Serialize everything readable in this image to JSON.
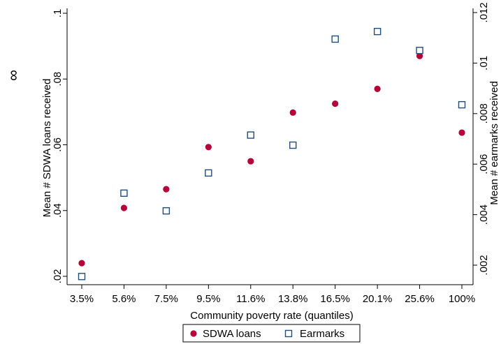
{
  "corner_glyph": "∞",
  "chart_data": {
    "type": "scatter",
    "title": "",
    "xlabel": "Community poverty rate (quantiles)",
    "ylabel_left": "Mean # SDWA loans received",
    "ylabel_right": "Mean # earmarks received",
    "categories": [
      "3.5%",
      "5.6%",
      "7.5%",
      "9.5%",
      "11.6%",
      "13.8%",
      "16.5%",
      "20.1%",
      "25.6%",
      "100%"
    ],
    "y_left": {
      "ticks": [
        0.02,
        0.04,
        0.06,
        0.08,
        0.1
      ],
      "tick_labels": [
        ".02",
        ".04",
        ".06",
        ".08",
        ".1"
      ],
      "range": [
        0.02,
        0.1
      ]
    },
    "y_right": {
      "ticks": [
        0.002,
        0.004,
        0.006,
        0.008,
        0.01,
        0.012
      ],
      "tick_labels": [
        ".002",
        ".004",
        ".006",
        ".008",
        ".01",
        ".012"
      ],
      "range": [
        0.0015,
        0.012
      ]
    },
    "series": [
      {
        "name": "SDWA loans",
        "axis": "left",
        "marker": "circle",
        "color": "#b5003a",
        "values": [
          0.024,
          0.0408,
          0.0465,
          0.0593,
          0.055,
          0.0698,
          0.0725,
          0.077,
          0.087,
          0.0637
        ]
      },
      {
        "name": "Earmarks",
        "axis": "right",
        "marker": "hollow-square",
        "color": "#1f4e79",
        "values": [
          0.00155,
          0.00485,
          0.00415,
          0.00565,
          0.00715,
          0.00675,
          0.01095,
          0.01125,
          0.0105,
          0.00835
        ]
      }
    ],
    "grid": false,
    "legend_position": "bottom"
  }
}
